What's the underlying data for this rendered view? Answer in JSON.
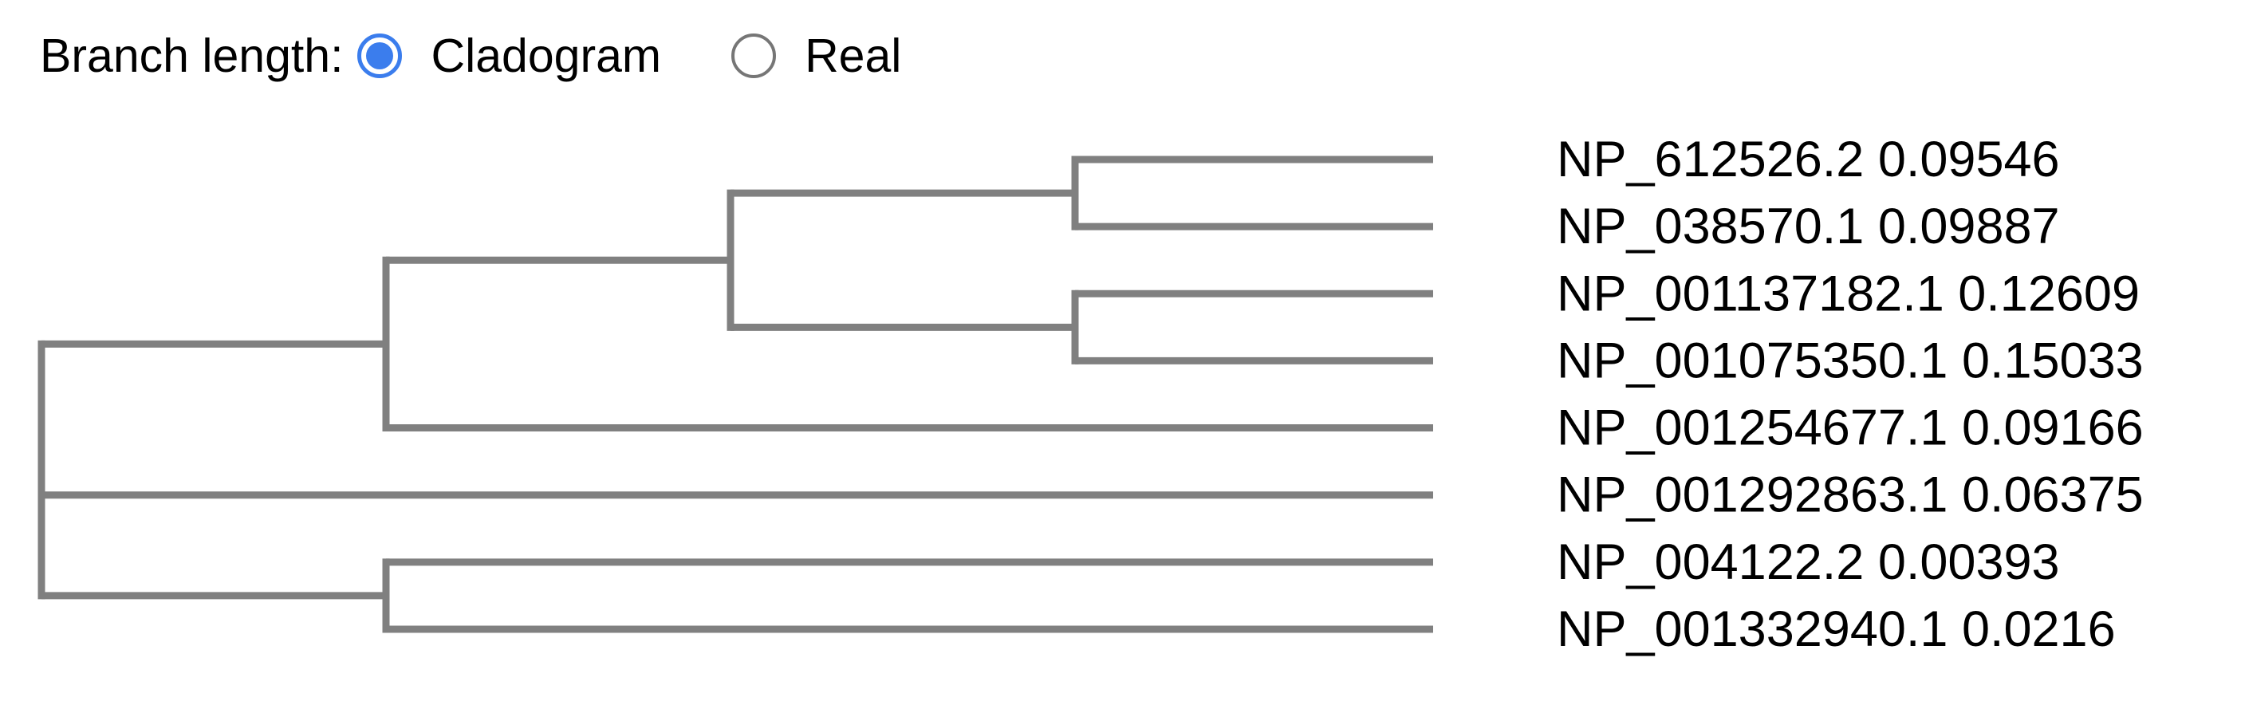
{
  "branch_length": {
    "label": "Branch length:",
    "options": [
      {
        "label": "Cladogram",
        "selected": true
      },
      {
        "label": "Real",
        "selected": false
      }
    ],
    "accent_color": "#3b7ded"
  },
  "tree": {
    "branch_color": "#808080",
    "leaves": [
      {
        "id": "NP_612526.2",
        "value": "0.09546"
      },
      {
        "id": "NP_038570.1",
        "value": "0.09887"
      },
      {
        "id": "NP_001137182.1",
        "value": "0.12609"
      },
      {
        "id": "NP_001075350.1",
        "value": "0.15033"
      },
      {
        "id": "NP_001254677.1",
        "value": "0.09166"
      },
      {
        "id": "NP_001292863.1",
        "value": "0.06375"
      },
      {
        "id": "NP_004122.2",
        "value": "0.00393"
      },
      {
        "id": "NP_001332940.1",
        "value": "0.0216"
      }
    ],
    "newick": "((((NP_612526.2,NP_038570.1),(NP_001137182.1,NP_001075350.1)),NP_001254677.1),NP_001292863.1,(NP_004122.2,NP_001332940.1));"
  }
}
